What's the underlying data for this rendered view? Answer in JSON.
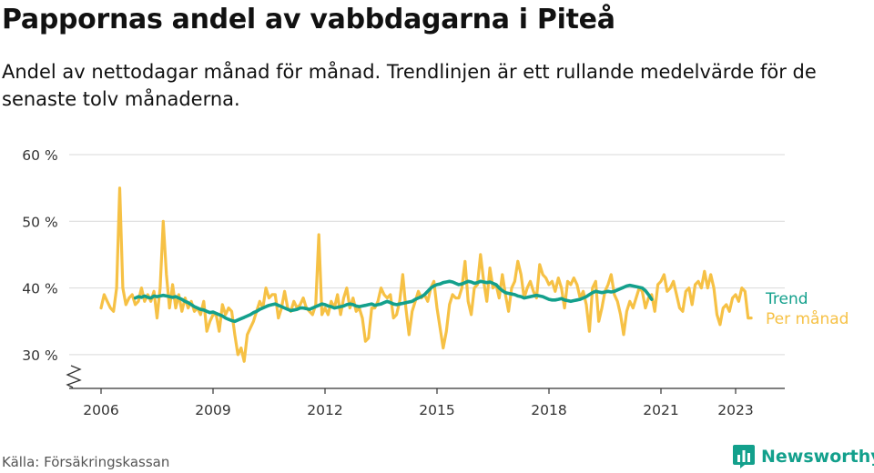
{
  "header": {
    "title": "Pappornas andel av vabbdagarna i Piteå",
    "subtitle": "Andel av nettodagar månad för månad. Trendlinjen är ett rullande medelvärde för de senaste tolv månaderna."
  },
  "footer": {
    "source": "Källa: Försäkringskassan",
    "brand": "Newsworthy"
  },
  "colors": {
    "monthly": "#f6c145",
    "trend": "#13a08c",
    "grid": "#d9d9d9",
    "axis": "#333333",
    "brand": "#13a08c"
  },
  "icons": {
    "brand_logo": "bar-chart-speech-bubble-icon",
    "axis_break": "zigzag-axis-break-icon"
  },
  "chart_data": {
    "type": "line",
    "title": "Pappornas andel av vabbdagarna i Piteå",
    "subtitle": "Andel av nettodagar månad för månad. Trendlinjen är ett rullande medelvärde för de senaste tolv månaderna.",
    "ylim": [
      25,
      60
    ],
    "yticks": [
      30,
      40,
      50,
      60
    ],
    "ytick_labels": [
      "30 %",
      "40 %",
      "50 %",
      "60 %"
    ],
    "xlim": [
      "2006-01",
      "2024-01"
    ],
    "xticks": [
      "2006-01",
      "2009-01",
      "2012-01",
      "2015-01",
      "2018-01",
      "2021-01",
      "2023-01"
    ],
    "xtick_labels": [
      "2006",
      "2009",
      "2012",
      "2015",
      "2018",
      "2021",
      "2023"
    ],
    "grid": true,
    "y_axis_break": true,
    "series": [
      {
        "name": "Per månad",
        "start": "2006-01",
        "values": [
          37.0,
          39.0,
          38.0,
          37.0,
          36.5,
          40.0,
          55.0,
          40.0,
          37.5,
          38.5,
          39.0,
          37.5,
          38.0,
          40.0,
          38.0,
          39.0,
          38.0,
          39.5,
          35.5,
          40.0,
          50.0,
          42.0,
          37.0,
          40.5,
          37.0,
          39.0,
          36.5,
          38.5,
          37.0,
          38.0,
          36.5,
          37.0,
          36.0,
          38.0,
          33.5,
          35.0,
          36.0,
          36.0,
          33.5,
          37.5,
          36.0,
          37.0,
          36.5,
          33.0,
          30.0,
          31.0,
          29.0,
          33.0,
          34.0,
          35.0,
          36.5,
          38.0,
          37.0,
          40.0,
          38.5,
          39.0,
          39.0,
          35.5,
          37.0,
          39.5,
          37.0,
          36.5,
          38.0,
          37.0,
          37.5,
          38.5,
          37.0,
          36.5,
          36.0,
          37.5,
          48.0,
          36.0,
          37.0,
          36.0,
          38.0,
          37.0,
          39.0,
          36.0,
          38.5,
          40.0,
          37.0,
          38.5,
          36.5,
          37.0,
          35.5,
          32.0,
          32.5,
          37.0,
          37.0,
          38.0,
          40.0,
          39.0,
          38.5,
          39.0,
          35.5,
          36.0,
          38.0,
          42.0,
          37.0,
          33.0,
          36.5,
          38.0,
          39.5,
          38.5,
          39.0,
          38.0,
          40.0,
          41.0,
          37.0,
          34.0,
          31.0,
          33.5,
          37.5,
          39.0,
          38.5,
          38.5,
          40.0,
          44.0,
          38.0,
          36.0,
          40.0,
          40.5,
          45.0,
          41.0,
          38.0,
          43.0,
          40.0,
          40.5,
          38.5,
          42.0,
          39.0,
          36.5,
          40.0,
          41.0,
          44.0,
          42.0,
          38.5,
          40.0,
          41.0,
          39.5,
          38.5,
          43.5,
          42.0,
          41.5,
          40.5,
          41.0,
          39.5,
          41.5,
          40.0,
          37.0,
          41.0,
          40.5,
          41.5,
          40.5,
          38.5,
          39.5,
          37.5,
          33.5,
          40.0,
          41.0,
          35.0,
          37.0,
          39.5,
          40.5,
          42.0,
          39.0,
          38.0,
          36.0,
          33.0,
          36.5,
          38.0,
          37.0,
          38.5,
          40.0,
          39.5,
          37.0,
          38.5,
          39.0,
          36.5,
          40.5,
          41.0,
          42.0,
          39.5,
          40.0,
          41.0,
          39.0,
          37.0,
          36.5,
          39.5,
          40.0,
          37.5,
          40.5,
          41.0,
          40.0,
          42.5,
          40.0,
          42.0,
          40.0,
          36.0,
          34.5,
          37.0,
          37.5,
          36.5,
          38.5,
          39.0,
          38.0,
          40.0,
          39.5,
          35.5,
          35.5
        ]
      },
      {
        "name": "Trend",
        "start": "2006-12",
        "values": [
          38.5,
          38.7,
          38.6,
          38.8,
          38.6,
          38.5,
          38.8,
          38.7,
          38.8,
          38.9,
          38.8,
          38.7,
          38.6,
          38.7,
          38.5,
          38.3,
          38.0,
          37.8,
          37.5,
          37.2,
          37.0,
          36.8,
          36.7,
          36.5,
          36.3,
          36.4,
          36.2,
          36.0,
          35.8,
          35.5,
          35.3,
          35.1,
          35.0,
          35.2,
          35.4,
          35.6,
          35.8,
          36.0,
          36.3,
          36.5,
          36.8,
          37.0,
          37.2,
          37.4,
          37.5,
          37.6,
          37.4,
          37.2,
          37.0,
          36.8,
          36.6,
          36.7,
          36.8,
          37.0,
          37.0,
          36.9,
          36.8,
          37.0,
          37.2,
          37.4,
          37.6,
          37.5,
          37.3,
          37.2,
          37.0,
          37.1,
          37.2,
          37.3,
          37.5,
          37.6,
          37.5,
          37.3,
          37.2,
          37.3,
          37.4,
          37.5,
          37.6,
          37.4,
          37.5,
          37.6,
          37.8,
          38.0,
          37.8,
          37.6,
          37.5,
          37.6,
          37.7,
          37.8,
          37.9,
          38.0,
          38.3,
          38.5,
          38.7,
          39.0,
          39.5,
          40.0,
          40.3,
          40.5,
          40.6,
          40.8,
          40.9,
          41.0,
          40.9,
          40.7,
          40.5,
          40.6,
          40.8,
          41.0,
          40.9,
          40.7,
          40.8,
          41.0,
          40.9,
          40.8,
          40.9,
          40.7,
          40.5,
          40.0,
          39.6,
          39.3,
          39.2,
          39.1,
          39.0,
          38.8,
          38.7,
          38.5,
          38.6,
          38.7,
          38.8,
          38.9,
          38.8,
          38.7,
          38.5,
          38.3,
          38.2,
          38.2,
          38.3,
          38.4,
          38.2,
          38.1,
          38.0,
          38.1,
          38.2,
          38.3,
          38.5,
          38.7,
          39.0,
          39.3,
          39.5,
          39.4,
          39.3,
          39.4,
          39.5,
          39.4,
          39.5,
          39.7,
          39.9,
          40.1,
          40.3,
          40.4,
          40.3,
          40.2,
          40.1,
          40.0,
          39.6,
          39.0,
          38.3
        ]
      }
    ],
    "series_labels": [
      "Trend",
      "Per månad"
    ]
  }
}
